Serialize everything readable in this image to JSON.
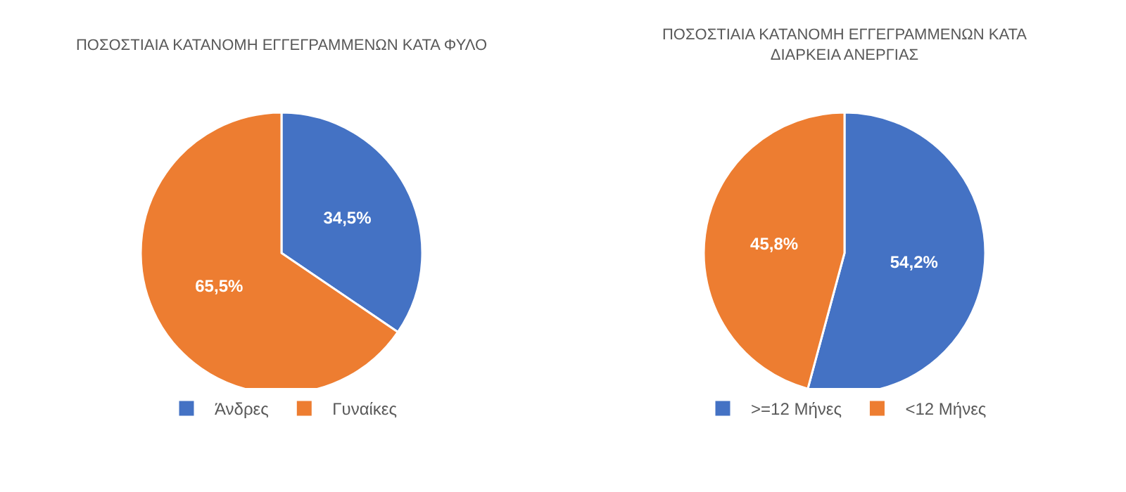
{
  "chart_data": [
    {
      "type": "pie",
      "title": "ΠΟΣΟΣΤΙΑΙΑ ΚΑΤΑΝΟΜΗ ΕΓΓΕΓΡΑΜΜΕΝΩΝ ΚΑΤΑ ΦΥΛΟ",
      "categories": [
        "Άνδρες",
        "Γυναίκες"
      ],
      "values": [
        34.5,
        65.5
      ],
      "colors": [
        "#4472c4",
        "#ed7d31"
      ],
      "value_labels": [
        "34,5%",
        "65,5%"
      ],
      "legend": "bottom"
    },
    {
      "type": "pie",
      "title": "ΠΟΣΟΣΤΙΑΙΑ ΚΑΤΑΝΟΜΗ ΕΓΓΕΓΡΑΜΜΕΝΩΝ ΚΑΤΑ ΔΙΑΡΚΕΙΑ ΑΝΕΡΓΙΑΣ",
      "categories": [
        ">=12 Μήνες",
        "<12 Μήνες"
      ],
      "values": [
        54.2,
        45.8
      ],
      "colors": [
        "#4472c4",
        "#ed7d31"
      ],
      "value_labels": [
        "54,2%",
        "45,8%"
      ],
      "legend": "bottom"
    }
  ]
}
